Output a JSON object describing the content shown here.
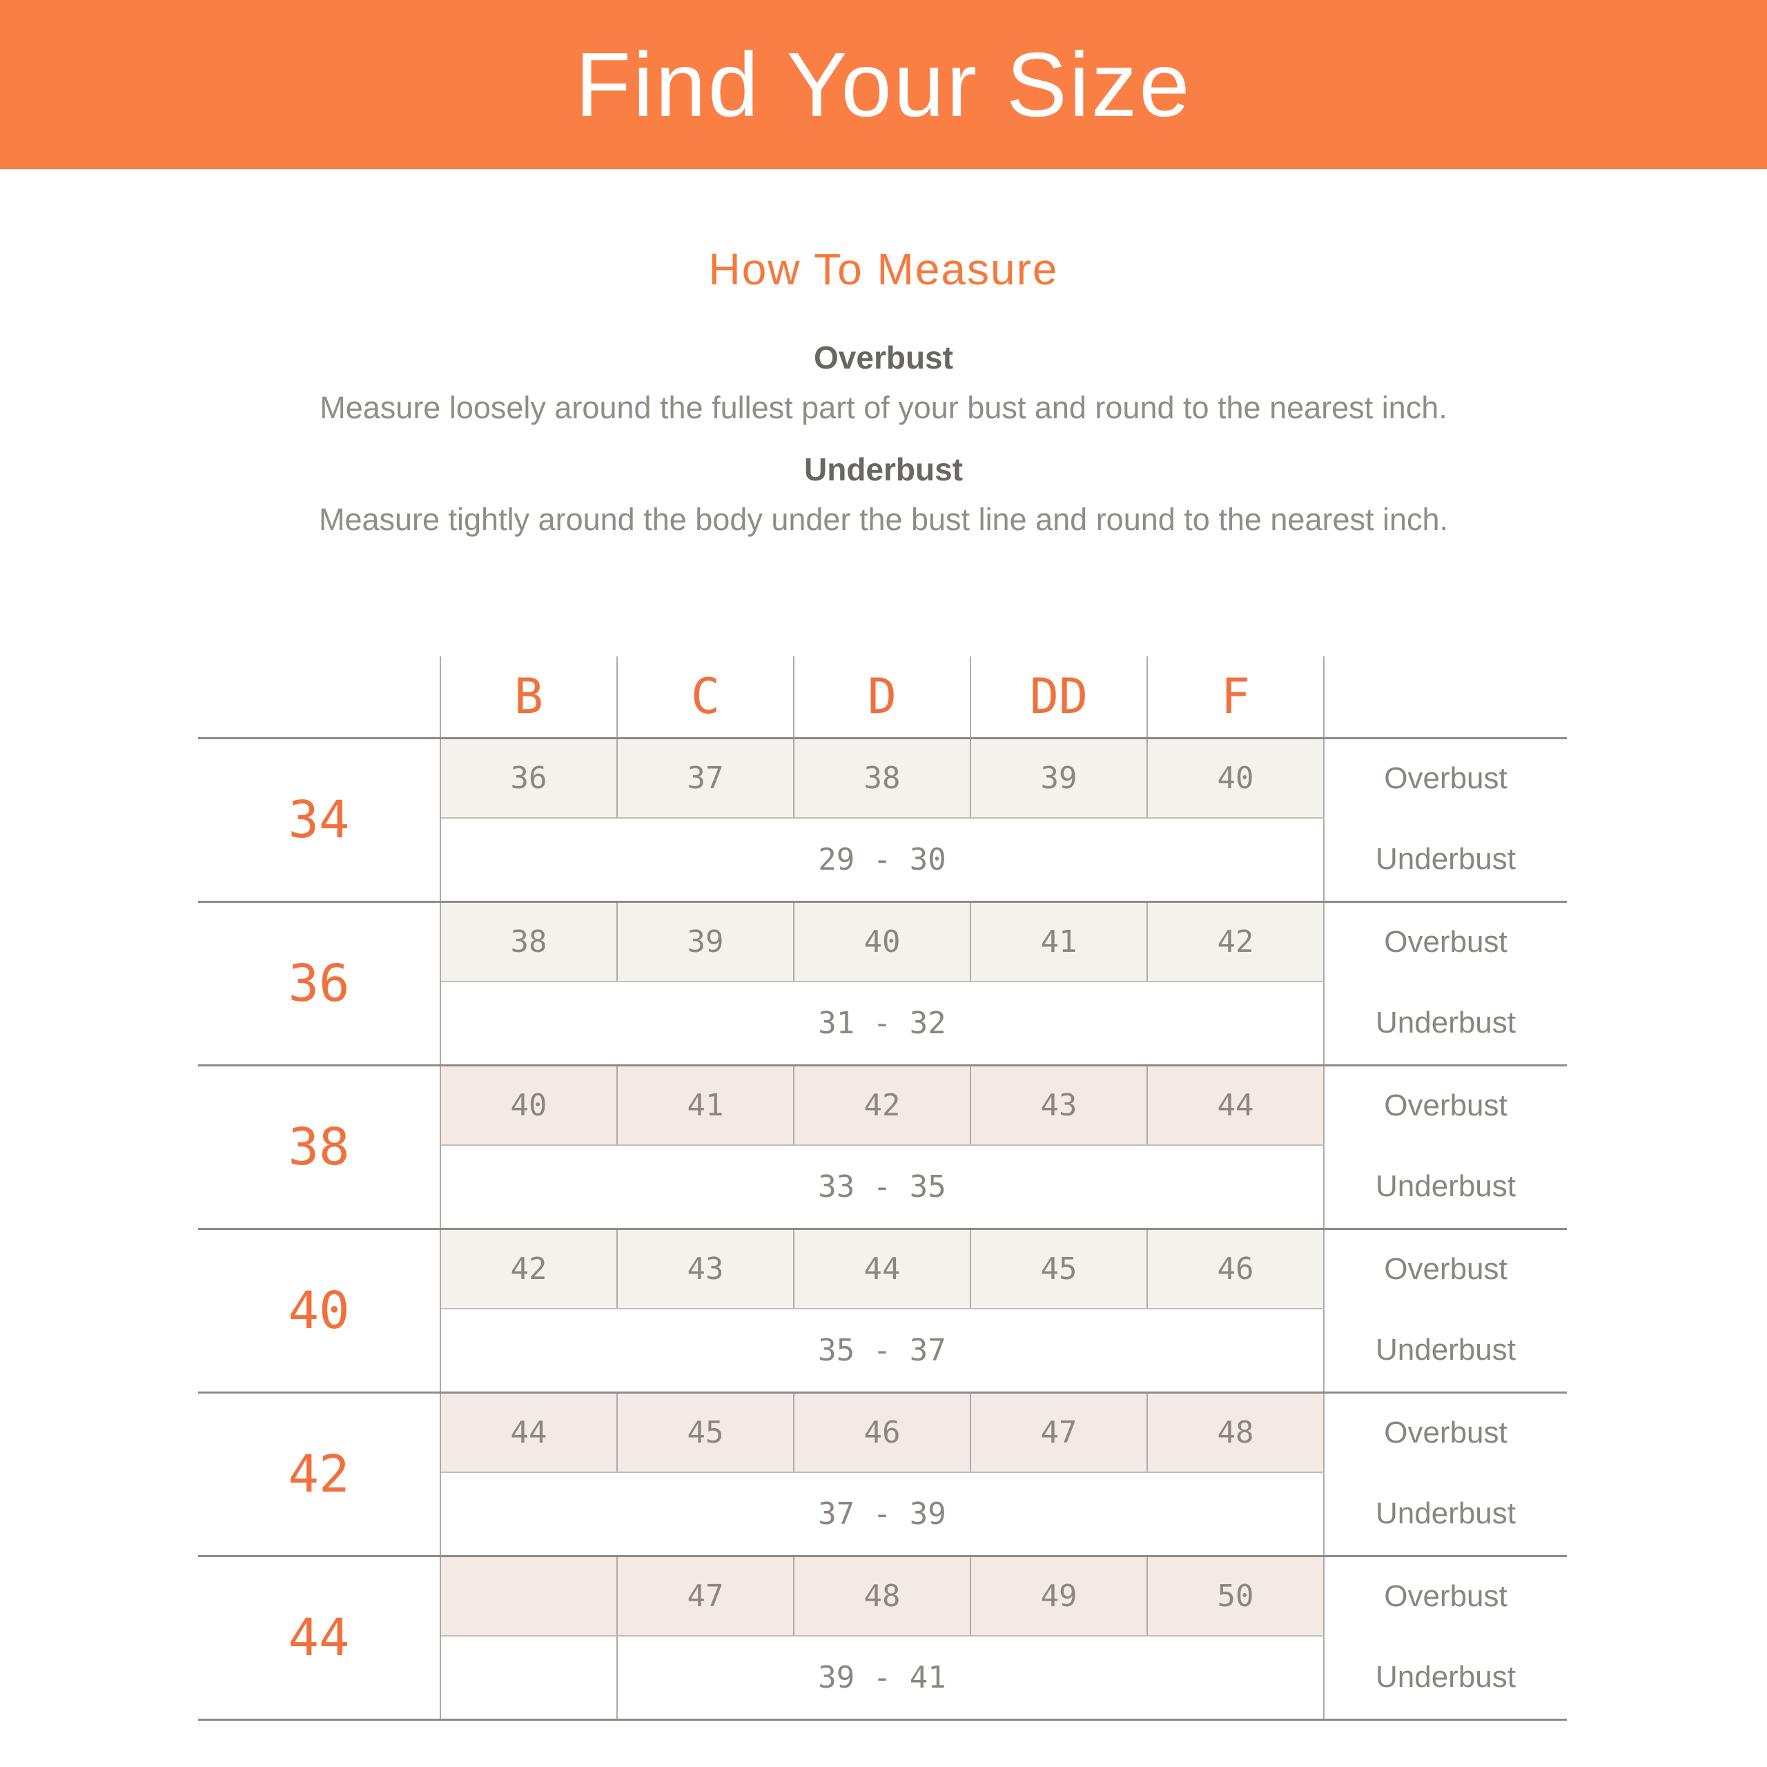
{
  "banner": {
    "title": "Find Your Size",
    "bg_color": "#f97f44",
    "text_color": "#ffffff"
  },
  "how_to_measure": {
    "title": "How To Measure",
    "title_color": "#f5793c",
    "sections": [
      {
        "heading": "Overbust",
        "text": "Measure loosely around the fullest part of your bust and round to the nearest inch."
      },
      {
        "heading": "Underbust",
        "text": "Measure tightly around the body under the bust line and round to the nearest inch."
      }
    ]
  },
  "size_chart": {
    "cup_headers": [
      "B",
      "C",
      "D",
      "DD",
      "F"
    ],
    "row_labels": {
      "overbust": "Overbust",
      "underbust": "Underbust"
    },
    "accent_color": "#f1703c",
    "tint_colors": {
      "light": "#f5f1ec",
      "pink": "#f3eae6"
    },
    "bands": [
      {
        "band": "34",
        "tint": "light",
        "overbust": [
          "36",
          "37",
          "38",
          "39",
          "40"
        ],
        "underbust": "29 - 30"
      },
      {
        "band": "36",
        "tint": "light",
        "overbust": [
          "38",
          "39",
          "40",
          "41",
          "42"
        ],
        "underbust": "31 - 32"
      },
      {
        "band": "38",
        "tint": "pink",
        "overbust": [
          "40",
          "41",
          "42",
          "43",
          "44"
        ],
        "underbust": "33 - 35"
      },
      {
        "band": "40",
        "tint": "light",
        "overbust": [
          "42",
          "43",
          "44",
          "45",
          "46"
        ],
        "underbust": "35 - 37"
      },
      {
        "band": "42",
        "tint": "pink",
        "overbust": [
          "44",
          "45",
          "46",
          "47",
          "48"
        ],
        "underbust": "37 - 39"
      },
      {
        "band": "44",
        "tint": "pink",
        "overbust": [
          "",
          "47",
          "48",
          "49",
          "50"
        ],
        "underbust": "39 - 41"
      }
    ]
  }
}
